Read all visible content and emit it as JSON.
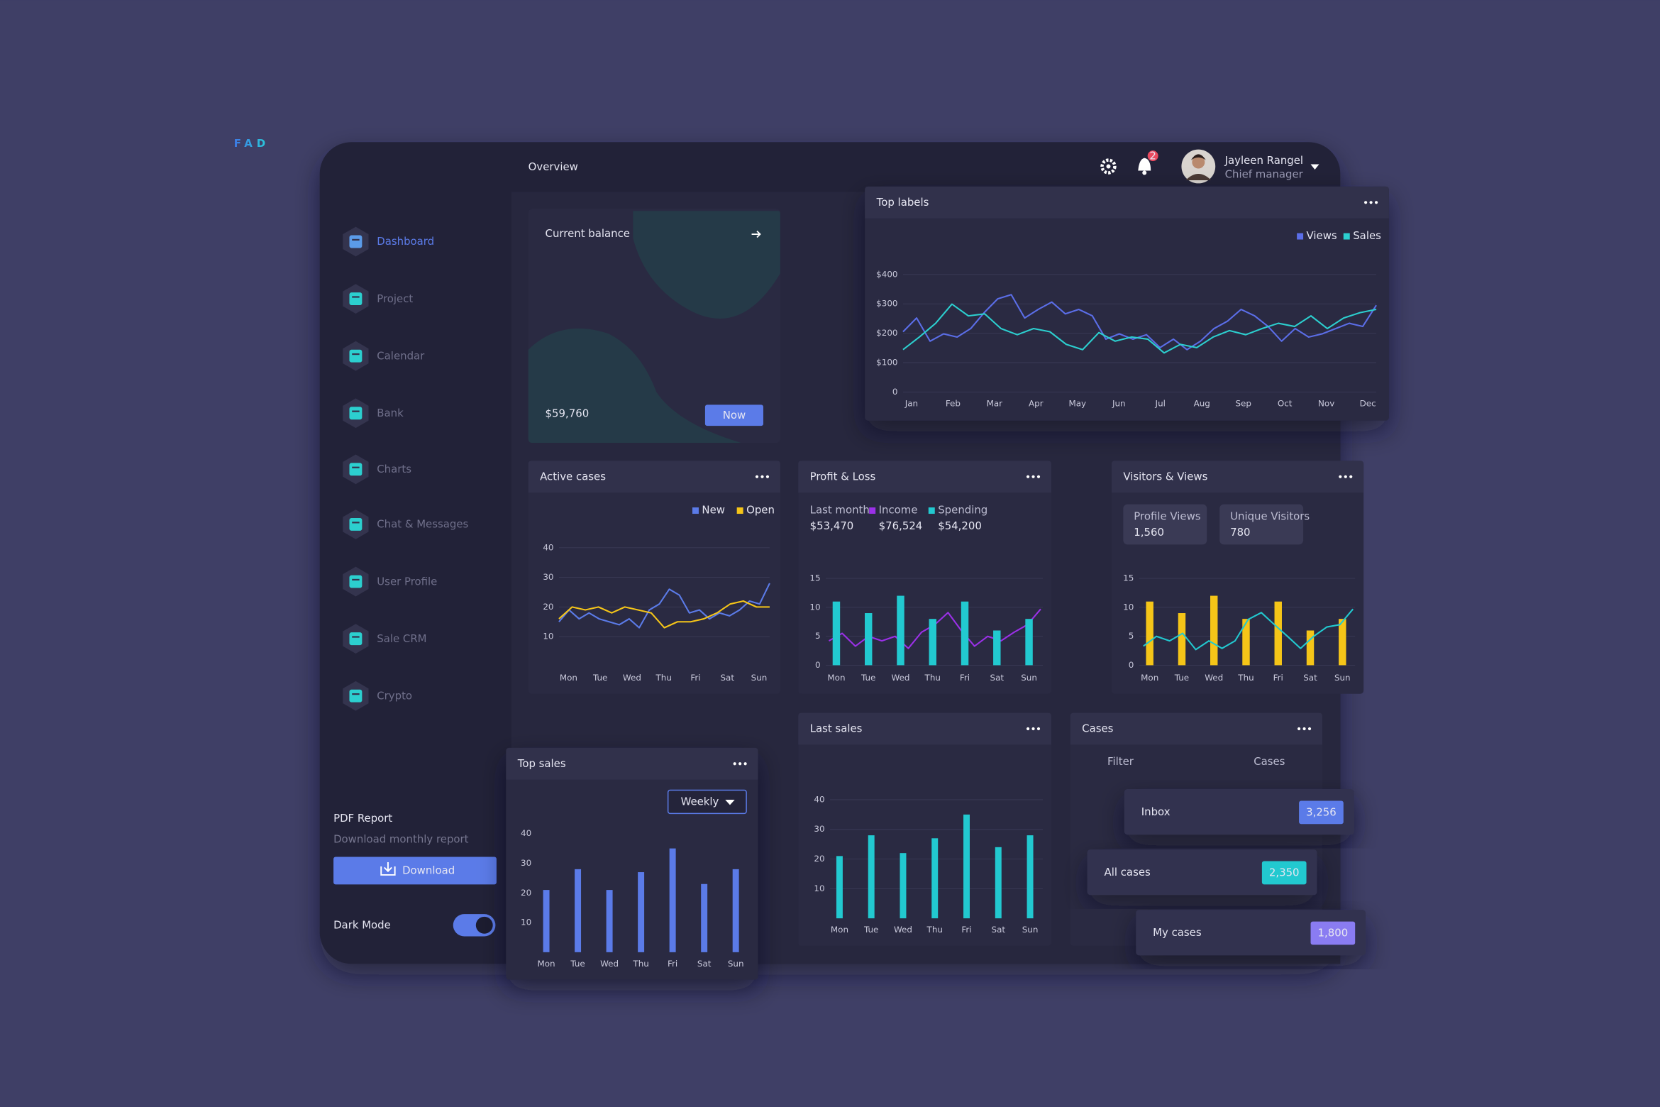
{
  "logo": "FAD",
  "header": {
    "title": "Overview",
    "notifications": "2",
    "user": {
      "name": "Jayleen Rangel",
      "role": "Chief manager"
    }
  },
  "sidebar": {
    "nav": [
      "Dashboard",
      "Project",
      "Calendar",
      "Bank",
      "Charts",
      "Chat & Messages",
      "User Profile",
      "Sale CRM",
      "Crypto"
    ],
    "report": {
      "title": "PDF Report",
      "subtitle": "Download monthly report",
      "button": "Download"
    },
    "dark_mode": "Dark Mode"
  },
  "balance": {
    "title": "Current balance",
    "amount": "$59,760",
    "badge": "Now"
  },
  "top_labels": {
    "type": "line",
    "title": "Top labels",
    "grid": true,
    "categories": [
      "Jan",
      "Feb",
      "Mar",
      "Apr",
      "May",
      "Jun",
      "Jul",
      "Aug",
      "Sep",
      "Oct",
      "Nov",
      "Dec"
    ],
    "ylim": [
      0,
      400
    ],
    "yticks": [
      0,
      {
        "value": 100,
        "label": "$100"
      },
      {
        "value": 200,
        "label": "$200"
      },
      {
        "value": 300,
        "label": "$300"
      },
      {
        "value": 400,
        "label": "$400"
      }
    ],
    "series": [
      {
        "name": "Views",
        "color": "#5b6ee8",
        "values": [
          205,
          252,
          173,
          198,
          187,
          216,
          270,
          317,
          331,
          252,
          281,
          306,
          266,
          281,
          259,
          180,
          198,
          180,
          195,
          151,
          180,
          144,
          173,
          216,
          241,
          281,
          259,
          223,
          173,
          216,
          187,
          198,
          216,
          234,
          223,
          295
        ]
      },
      {
        "name": "Sales",
        "color": "#2ccfcf",
        "values": [
          144,
          187,
          234,
          299,
          259,
          266,
          216,
          195,
          216,
          205,
          162,
          144,
          202,
          173,
          187,
          180,
          133,
          162,
          151,
          187,
          209,
          195,
          216,
          234,
          223,
          259,
          216,
          252,
          270,
          281
        ]
      }
    ]
  },
  "active_cases": {
    "type": "line",
    "title": "Active cases",
    "grid": true,
    "categories": [
      "Mon",
      "Tue",
      "Wed",
      "Thu",
      "Fri",
      "Sat",
      "Sun"
    ],
    "ylim": [
      0,
      40
    ],
    "yticks": [
      10,
      20,
      30,
      40
    ],
    "series": [
      {
        "name": "New",
        "color": "#5b7be8",
        "values": [
          15,
          19,
          16,
          18,
          16,
          15,
          14,
          16,
          13,
          19,
          21,
          26,
          24,
          18,
          19,
          16,
          18,
          17,
          19,
          22,
          21,
          28
        ]
      },
      {
        "name": "Open",
        "color": "#f5c518",
        "values": [
          16,
          20,
          19,
          20,
          18,
          20,
          19,
          18,
          13,
          15,
          15,
          16,
          18,
          21,
          22,
          20,
          20
        ]
      }
    ]
  },
  "profit_loss": {
    "type": "combo",
    "title": "Profit & Loss",
    "grid": true,
    "last_month": {
      "label": "Last month",
      "value": "$53,470"
    },
    "categories": [
      "Mon",
      "Tue",
      "Wed",
      "Thu",
      "Fri",
      "Sat",
      "Sun"
    ],
    "ylim": [
      0,
      15
    ],
    "yticks": [
      0,
      5,
      10,
      15
    ],
    "series": [
      {
        "name": "Income",
        "total": "$76,524",
        "type": "line",
        "color": "#9b30e8",
        "values": [
          4.2,
          5.5,
          3.3,
          5,
          4.2,
          5,
          2.9,
          5.7,
          7,
          9.1,
          6,
          3.3,
          5,
          4.2,
          5.7,
          7,
          9.7
        ]
      },
      {
        "name": "Spending",
        "total": "$54,200",
        "type": "bar",
        "color": "#22c9d0",
        "values": [
          11,
          9,
          12,
          8,
          11,
          6,
          8
        ]
      }
    ]
  },
  "visitors_views": {
    "type": "combo",
    "title": "Visitors & Views",
    "grid": true,
    "stats": [
      {
        "label": "Profile Views",
        "value": "1,560"
      },
      {
        "label": "Unique Visitors",
        "value": "780"
      }
    ],
    "categories": [
      "Mon",
      "Tue",
      "Wed",
      "Thu",
      "Fri",
      "Sat",
      "Sun"
    ],
    "ylim": [
      0,
      15
    ],
    "yticks": [
      0,
      5,
      10,
      15
    ],
    "series": [
      {
        "type": "bar",
        "color": "#f5c518",
        "values": [
          11,
          9,
          12,
          8,
          11,
          6,
          8
        ]
      },
      {
        "type": "line",
        "color": "#22c9d0",
        "values": [
          3.3,
          5,
          4.2,
          5.5,
          2.7,
          4.2,
          2.9,
          4.2,
          7.9,
          9.1,
          7,
          5,
          2.9,
          5,
          6.6,
          7,
          9.7
        ]
      }
    ]
  },
  "last_sales": {
    "type": "bar",
    "title": "Last sales",
    "grid": true,
    "color": "#22c9d0",
    "categories": [
      "Mon",
      "Tue",
      "Wed",
      "Thu",
      "Fri",
      "Sat",
      "Sun"
    ],
    "ylim": [
      0,
      40
    ],
    "yticks": [
      10,
      20,
      30,
      40
    ],
    "values": [
      21,
      28,
      22,
      27,
      35,
      24,
      28
    ]
  },
  "top_sales": {
    "type": "bar",
    "title": "Top sales",
    "grid": false,
    "color": "#5b7be8",
    "filter": "Weekly",
    "categories": [
      "Mon",
      "Tue",
      "Wed",
      "Thu",
      "Fri",
      "Sat",
      "Sun"
    ],
    "ylim": [
      0,
      40
    ],
    "yticks": [
      10,
      20,
      30,
      40
    ],
    "values": [
      21,
      28,
      21,
      27,
      35,
      23,
      28
    ]
  },
  "cases": {
    "title": "Cases",
    "columns": [
      "Filter",
      "Cases"
    ],
    "rows": [
      {
        "label": "Inbox",
        "value": "3,256"
      },
      {
        "label": "All cases",
        "value": "2,350"
      },
      {
        "label": "My cases",
        "value": "1,800"
      }
    ]
  }
}
